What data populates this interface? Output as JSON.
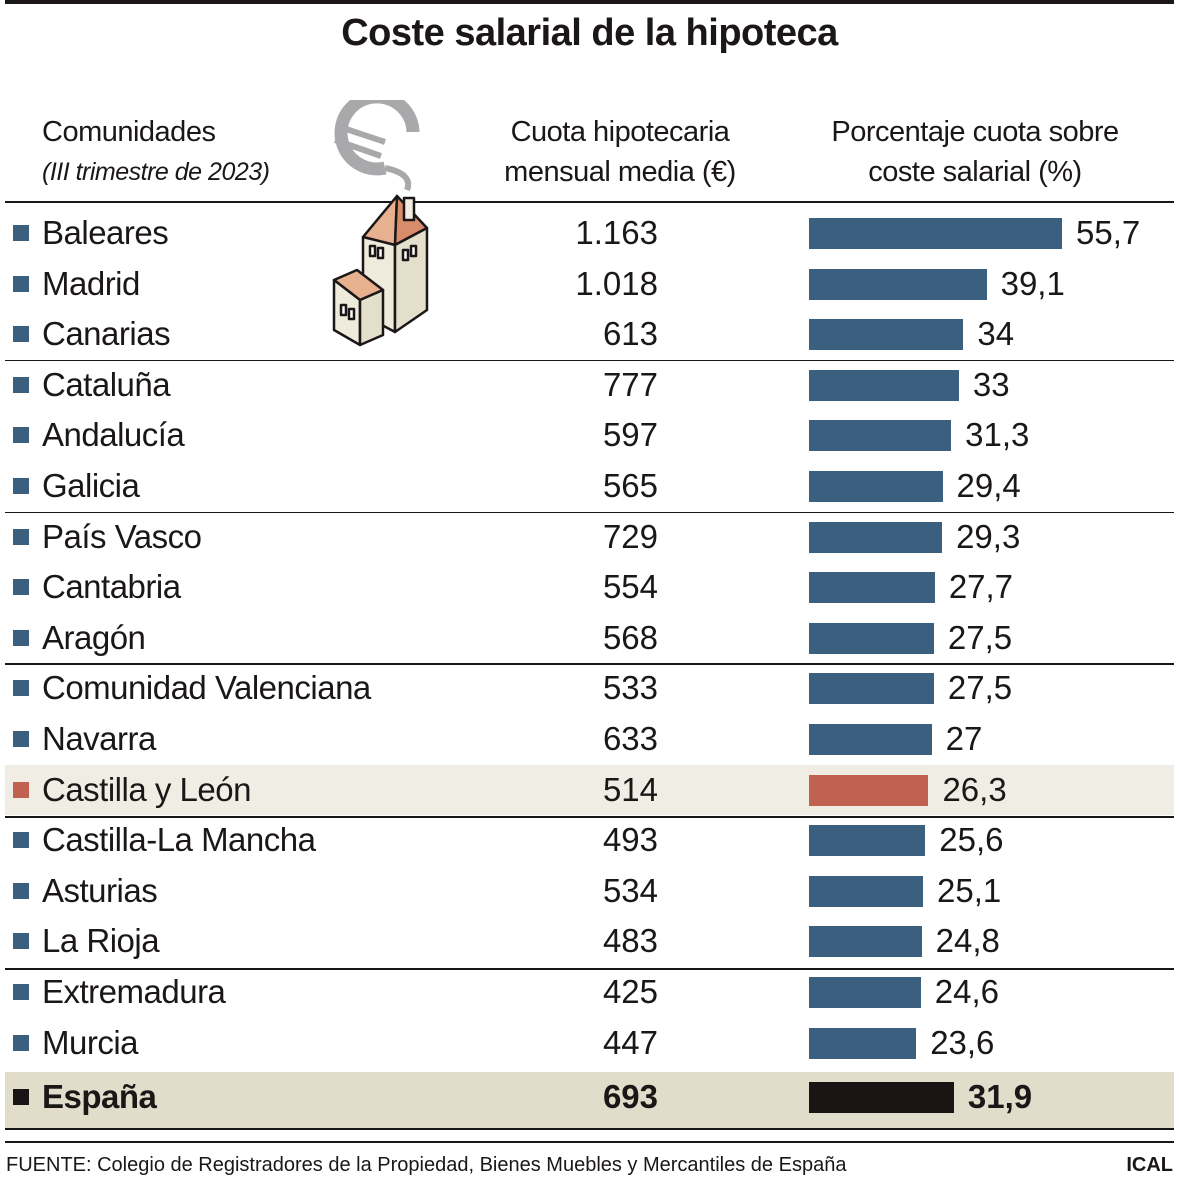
{
  "title": "Coste salarial de la hipoteca",
  "headers": {
    "comunidades": "Comunidades",
    "periodo": "(III trimestre de 2023)",
    "cuota": [
      "Cuota hipotecaria",
      "mensual media (€)"
    ],
    "porcentaje": [
      "Porcentaje cuota sobre",
      "coste salarial (%)"
    ]
  },
  "colors": {
    "default": "#3b607f",
    "highlight": "#c1614f",
    "total": "#1b1414",
    "highlight_bg": "#efede4",
    "total_bg": "#e2ddca"
  },
  "chart_data": {
    "type": "table",
    "title": "Coste salarial de la hipoteca",
    "columns": [
      "Comunidades",
      "Cuota hipotecaria mensual media (€)",
      "Porcentaje cuota sobre coste salarial (%)"
    ],
    "rows": [
      {
        "name": "Baleares",
        "cuota": "1.163",
        "pct": "55,7",
        "value": 55.7
      },
      {
        "name": "Madrid",
        "cuota": "1.018",
        "pct": "39,1",
        "value": 39.1
      },
      {
        "name": "Canarias",
        "cuota": "613",
        "pct": "34",
        "value": 34
      },
      {
        "name": "Cataluña",
        "cuota": "777",
        "pct": "33",
        "value": 33
      },
      {
        "name": "Andalucía",
        "cuota": "597",
        "pct": "31,3",
        "value": 31.3
      },
      {
        "name": "Galicia",
        "cuota": "565",
        "pct": "29,4",
        "value": 29.4
      },
      {
        "name": "País Vasco",
        "cuota": "729",
        "pct": "29,3",
        "value": 29.3
      },
      {
        "name": "Cantabria",
        "cuota": "554",
        "pct": "27,7",
        "value": 27.7
      },
      {
        "name": "Aragón",
        "cuota": "568",
        "pct": "27,5",
        "value": 27.5
      },
      {
        "name": "Comunidad Valenciana",
        "cuota": "533",
        "pct": "27,5",
        "value": 27.5
      },
      {
        "name": "Navarra",
        "cuota": "633",
        "pct": "27",
        "value": 27
      },
      {
        "name": "Castilla y León",
        "cuota": "514",
        "pct": "26,3",
        "value": 26.3,
        "highlight": true
      },
      {
        "name": "Castilla-La Mancha",
        "cuota": "493",
        "pct": "25,6",
        "value": 25.6
      },
      {
        "name": "Asturias",
        "cuota": "534",
        "pct": "25,1",
        "value": 25.1
      },
      {
        "name": "La Rioja",
        "cuota": "483",
        "pct": "24,8",
        "value": 24.8
      },
      {
        "name": "Extremadura",
        "cuota": "425",
        "pct": "24,6",
        "value": 24.6
      },
      {
        "name": "Murcia",
        "cuota": "447",
        "pct": "23,6",
        "value": 23.6
      },
      {
        "name": "España",
        "cuota": "693",
        "pct": "31,9",
        "value": 31.9,
        "total": true
      }
    ]
  },
  "footer": {
    "source": "FUENTE: Colegio de Registradores de la Propiedad, Bienes Muebles y Mercantiles de España",
    "brand": "ICAL"
  }
}
